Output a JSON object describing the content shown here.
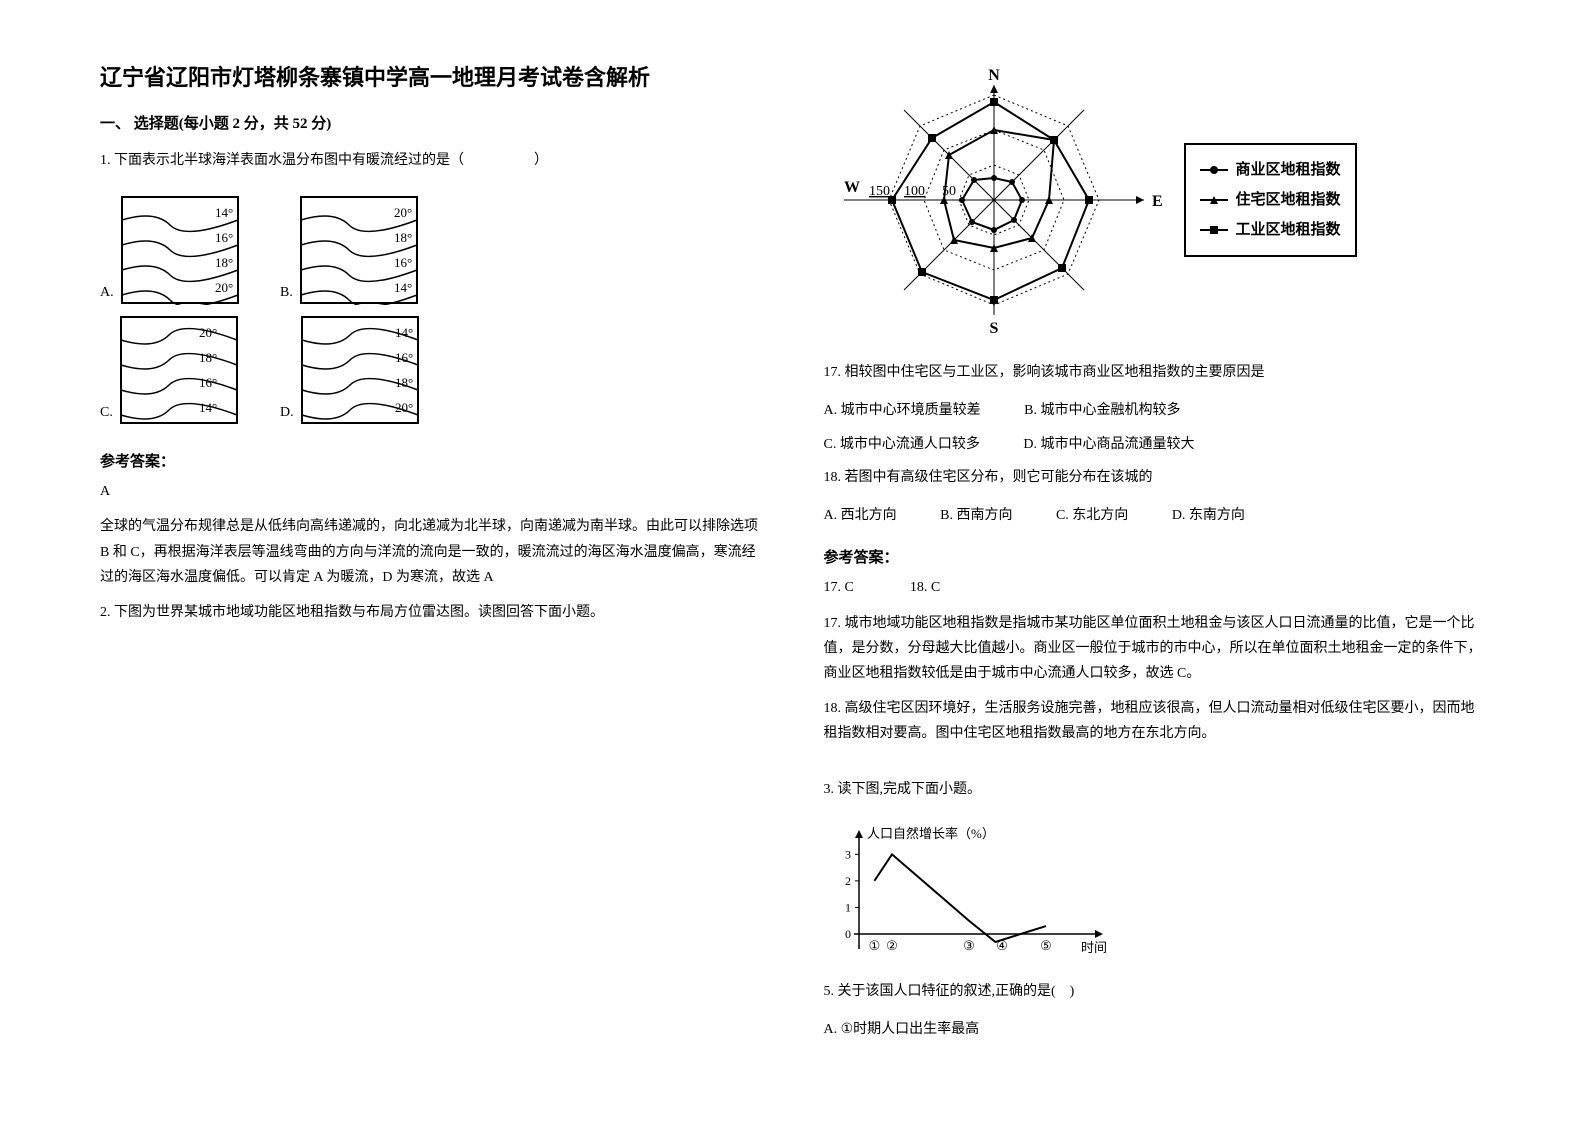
{
  "title": "辽宁省辽阳市灯塔柳条寨镇中学高一地理月考试卷含解析",
  "section1": "一、 选择题(每小题 2 分，共 52 分)",
  "q1": {
    "text": "1. 下面表示北半球海洋表面水温分布图中有暖流经过的是（　　　　　）",
    "options": {
      "a": "A.",
      "b": "B.",
      "c": "C.",
      "d": "D."
    },
    "diagrams": {
      "A": {
        "labels": [
          "14°",
          "16°",
          "18°",
          "20°"
        ],
        "direction": "down"
      },
      "B": {
        "labels": [
          "20°",
          "18°",
          "16°",
          "14°"
        ],
        "direction": "down"
      },
      "C": {
        "labels": [
          "20°",
          "18°",
          "16°",
          "14°"
        ],
        "direction": "up"
      },
      "D": {
        "labels": [
          "14°",
          "16°",
          "18°",
          "20°"
        ],
        "direction": "up"
      }
    }
  },
  "answer_label": "参考答案：",
  "q1_answer": "A",
  "q1_explain": "全球的气温分布规律总是从低纬向高纬递减的，向北递减为北半球，向南递减为南半球。由此可以排除选项 B 和 C，再根据海洋表层等温线弯曲的方向与洋流的流向是一致的，暖流流过的海区海水温度偏高，寒流经过的海区海水温度偏低。可以肯定 A 为暖流，D 为寒流，故选 A",
  "q2": {
    "text": "2. 下图为世界某城市地域功能区地租指数与布局方位雷达图。读图回答下面小题。",
    "radar": {
      "directions": {
        "N": "N",
        "E": "E",
        "S": "S",
        "W": "W"
      },
      "axis_labels": [
        "150",
        "100",
        "50"
      ],
      "legend": {
        "commercial": "商业区地租指数",
        "residential": "住宅区地租指数",
        "industrial": "工业区地租指数"
      },
      "commercial_marker": "●",
      "residential_marker": "▲",
      "industrial_marker": "■"
    }
  },
  "q17": {
    "text": "17.  相较图中住宅区与工业区，影响该城市商业区地租指数的主要原因是",
    "a": "A.  城市中心环境质量较差",
    "b": "B.  城市中心金融机构较多",
    "c": "C.  城市中心流通人口较多",
    "d": "D.  城市中心商品流通量较大"
  },
  "q18": {
    "text": "18.  若图中有高级住宅区分布，则它可能分布在该城的",
    "a": "A.  西北方向",
    "b": "B.  西南方向",
    "c": "C.  东北方向",
    "d": "D.  东南方向"
  },
  "q2_answers": "17.  C　　　　18.  C",
  "q17_explain": "17.  城市地域功能区地租指数是指城市某功能区单位面积土地租金与该区人口日流通量的比值，它是一个比值，是分数，分母越大比值越小。商业区一般位于城市的市中心，所以在单位面积土地租金一定的条件下，商业区地租指数较低是由于城市中心流通人口较多，故选 C。",
  "q18_explain": "18.  高级住宅区因环境好，生活服务设施完善，地租应该很高，但人口流动量相对低级住宅区要小，因而地租指数相对要高。图中住宅区地租指数最高的地方在东北方向。",
  "q3": {
    "text": "3. 读下图,完成下面小题。",
    "chart": {
      "ylabel": "人口自然增长率（%）",
      "xlabel": "时间",
      "yticks": [
        "0",
        "1",
        "2",
        "3"
      ],
      "xticks": [
        "①",
        "②",
        "③",
        "④",
        "⑤"
      ],
      "points": [
        {
          "x": 0.07,
          "y": 2.0
        },
        {
          "x": 0.15,
          "y": 3.0
        },
        {
          "x": 0.5,
          "y": 0.5
        },
        {
          "x": 0.62,
          "y": -0.3
        },
        {
          "x": 0.85,
          "y": 0.3
        }
      ],
      "y_range": [
        -0.5,
        3.2
      ],
      "line_color": "#000000",
      "axis_color": "#000000"
    }
  },
  "q5": {
    "text": "5.  关于该国人口特征的叙述,正确的是(　)",
    "a": "A.  ①时期人口出生率最高"
  }
}
